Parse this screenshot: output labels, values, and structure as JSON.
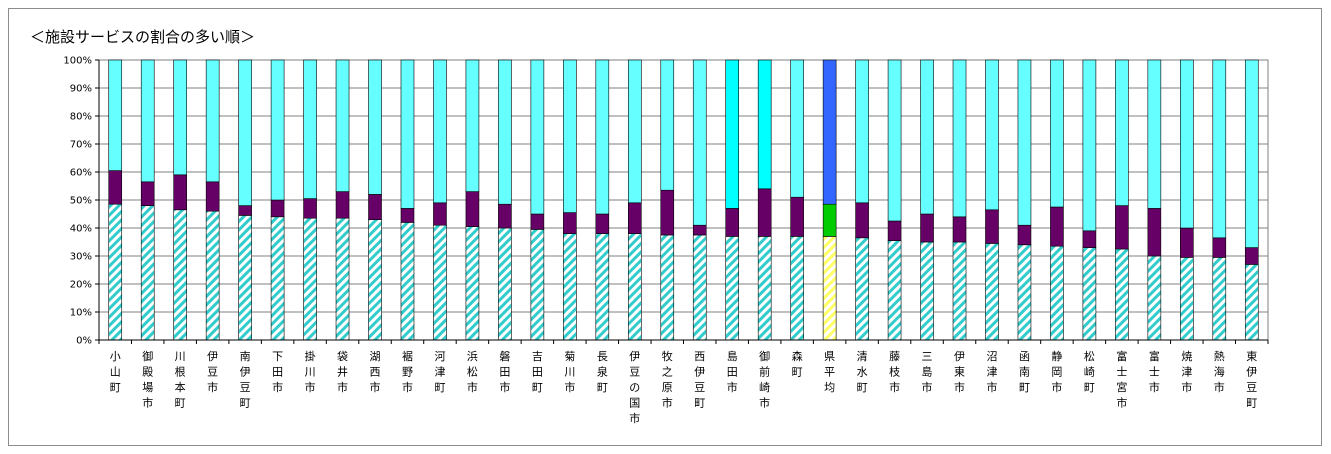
{
  "chart_data": {
    "type": "bar",
    "stacked": true,
    "percent": true,
    "title": "＜施設サービスの割合の多い順＞",
    "xlabel": "",
    "ylabel": "",
    "ylim": [
      0,
      100
    ],
    "yticks": [
      "0%",
      "10%",
      "20%",
      "30%",
      "40%",
      "50%",
      "60%",
      "70%",
      "80%",
      "90%",
      "100%"
    ],
    "grid": true,
    "categories": [
      "小山町",
      "御殿場市",
      "川根本町",
      "伊豆市",
      "南伊豆町",
      "下田市",
      "掛川市",
      "袋井市",
      "湖西市",
      "裾野市",
      "河津町",
      "浜松市",
      "磐田市",
      "吉田町",
      "菊川市",
      "長泉町",
      "伊豆の国市",
      "牧之原市",
      "西伊豆町",
      "島田市",
      "御前崎市",
      "森町",
      "県平均",
      "清水町",
      "藤枝市",
      "三島市",
      "伊東市",
      "沼津市",
      "函南町",
      "静岡市",
      "松崎町",
      "富士宮市",
      "富士市",
      "焼津市",
      "熱海市",
      "東伊豆町"
    ],
    "highlight_index": 22,
    "series": [
      {
        "values": [
          48.5,
          48,
          46.5,
          46,
          44.5,
          44,
          43.5,
          43.5,
          43,
          42,
          41,
          40.5,
          40,
          39.5,
          38,
          38,
          38,
          37.5,
          37.5,
          37,
          37,
          37,
          37,
          36.5,
          35.5,
          35,
          35,
          34.5,
          34,
          33.5,
          33,
          32.5,
          30,
          29.5,
          29.5,
          27
        ],
        "color": "#33cccc",
        "pattern": "diagonal-stripe",
        "highlight_color": "#ffff66"
      },
      {
        "values": [
          12,
          8.5,
          12.5,
          10.5,
          3.5,
          6,
          7,
          9.5,
          9,
          5,
          8,
          12.5,
          8.5,
          5.5,
          7.5,
          7,
          11,
          16,
          3.5,
          10,
          17,
          14,
          11.5,
          12.5,
          7,
          10,
          9,
          12,
          7,
          14,
          6,
          15.5,
          17,
          10.5,
          7,
          6
        ],
        "color": "#660066",
        "highlight_color": "#00cc00"
      },
      {
        "values": [
          39.5,
          43.5,
          41,
          43.5,
          52,
          50,
          49.5,
          47,
          48,
          53,
          51,
          47,
          51.5,
          55,
          54.5,
          55,
          51,
          46.5,
          59,
          53,
          46,
          49,
          51.5,
          51,
          57.5,
          55,
          56,
          53.5,
          59,
          52.5,
          61,
          52,
          53,
          60,
          63.5,
          67
        ],
        "color": "#66ffff",
        "alt_color": "#00ffff",
        "alt_indices": [
          19,
          20
        ],
        "highlight_color": "#3366ff"
      }
    ]
  }
}
